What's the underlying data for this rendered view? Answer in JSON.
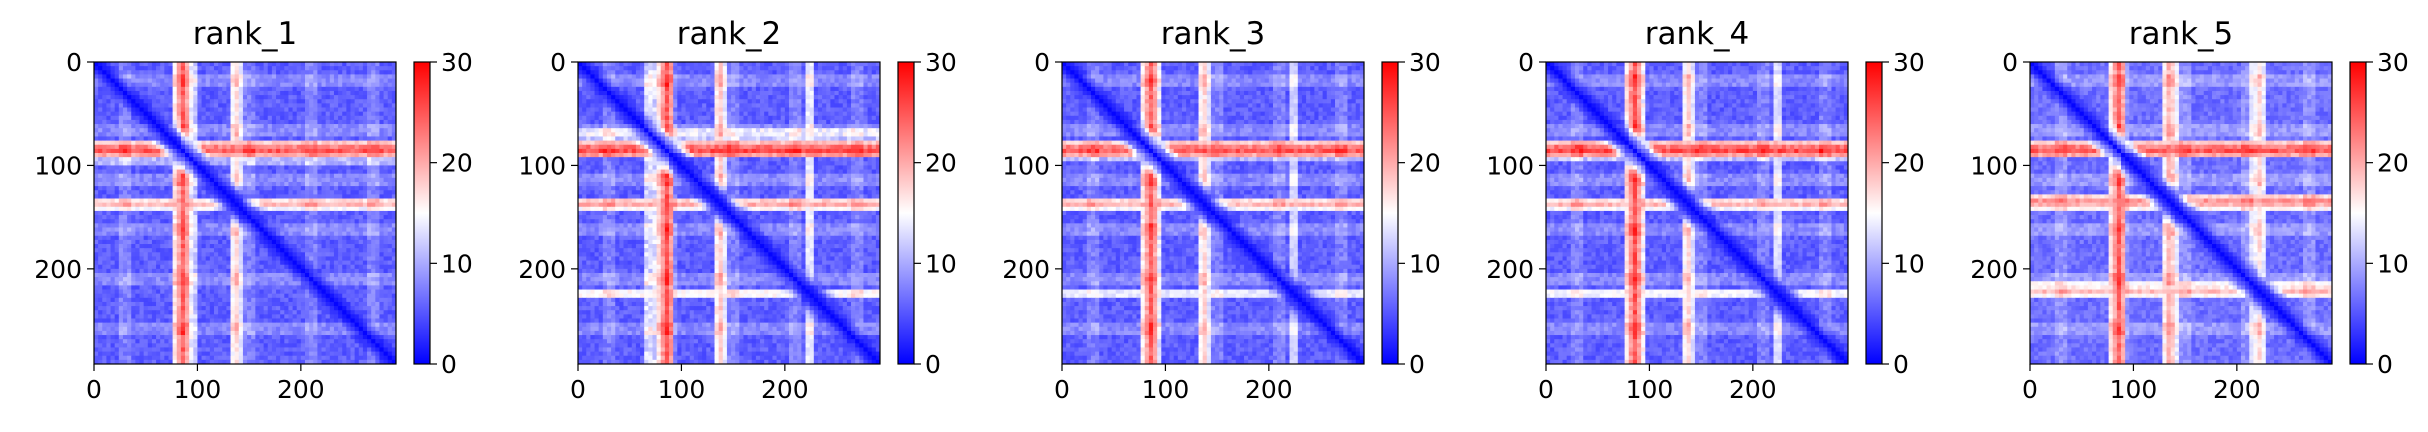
{
  "chart_data": [
    {
      "type": "heatmap",
      "title": "rank_1",
      "x_ticks": [
        "0",
        "100",
        "200"
      ],
      "y_ticks": [
        "0",
        "100",
        "200"
      ],
      "xlim": [
        0,
        292
      ],
      "ylim": [
        292,
        0
      ],
      "matrix_size": 292,
      "colormap": "bwr",
      "colorbar": {
        "min": 0,
        "max": 30,
        "ticks": [
          "0",
          "10",
          "20",
          "30"
        ]
      },
      "features": {
        "diagonal": "low values (~0) along the main diagonal",
        "high_bands": [
          {
            "rows": [
              78,
              92
            ],
            "value": 28
          },
          {
            "rows": [
              132,
              142
            ],
            "value": 22
          }
        ],
        "moderate_bands": [
          {
            "cols": [
              85,
              100
            ],
            "value": 14
          }
        ],
        "background": 4
      }
    },
    {
      "type": "heatmap",
      "title": "rank_2",
      "x_ticks": [
        "0",
        "100",
        "200"
      ],
      "y_ticks": [
        "0",
        "100",
        "200"
      ],
      "xlim": [
        0,
        292
      ],
      "ylim": [
        292,
        0
      ],
      "matrix_size": 292,
      "colormap": "bwr",
      "colorbar": {
        "min": 0,
        "max": 30,
        "ticks": [
          "0",
          "10",
          "20",
          "30"
        ]
      },
      "features": {
        "diagonal": "low values (~0) along the main diagonal",
        "high_bands": [
          {
            "rows": [
              78,
              92
            ],
            "value": 29
          },
          {
            "rows": [
              132,
              142
            ],
            "value": 23
          },
          {
            "rows": [
              220,
              228
            ],
            "value": 19
          }
        ],
        "moderate_bands": [
          {
            "cols": [
              65,
              90
            ],
            "value": 15
          }
        ],
        "background": 4
      }
    },
    {
      "type": "heatmap",
      "title": "rank_3",
      "x_ticks": [
        "0",
        "100",
        "200"
      ],
      "y_ticks": [
        "0",
        "100",
        "200"
      ],
      "xlim": [
        0,
        292
      ],
      "ylim": [
        292,
        0
      ],
      "matrix_size": 292,
      "colormap": "bwr",
      "colorbar": {
        "min": 0,
        "max": 30,
        "ticks": [
          "0",
          "10",
          "20",
          "30"
        ]
      },
      "features": {
        "diagonal": "low values (~0) along the main diagonal",
        "high_bands": [
          {
            "rows": [
              78,
              92
            ],
            "value": 28
          },
          {
            "rows": [
              132,
              142
            ],
            "value": 22
          },
          {
            "rows": [
              220,
              228
            ],
            "value": 17
          }
        ],
        "moderate_bands": [
          {
            "cols": [
              75,
              95
            ],
            "value": 14
          }
        ],
        "background": 4
      }
    },
    {
      "type": "heatmap",
      "title": "rank_4",
      "x_ticks": [
        "0",
        "100",
        "200"
      ],
      "y_ticks": [
        "0",
        "100",
        "200"
      ],
      "xlim": [
        0,
        292
      ],
      "ylim": [
        292,
        0
      ],
      "matrix_size": 292,
      "colormap": "bwr",
      "colorbar": {
        "min": 0,
        "max": 30,
        "ticks": [
          "0",
          "10",
          "20",
          "30"
        ]
      },
      "features": {
        "diagonal": "low values (~0) along the main diagonal",
        "high_bands": [
          {
            "rows": [
              78,
              92
            ],
            "value": 29
          },
          {
            "rows": [
              132,
              142
            ],
            "value": 22
          },
          {
            "rows": [
              220,
              228
            ],
            "value": 18
          }
        ],
        "moderate_bands": [
          {
            "cols": [
              80,
              95
            ],
            "value": 15
          }
        ],
        "background": 4
      }
    },
    {
      "type": "heatmap",
      "title": "rank_5",
      "x_ticks": [
        "0",
        "100",
        "200"
      ],
      "y_ticks": [
        "0",
        "100",
        "200"
      ],
      "xlim": [
        0,
        292
      ],
      "ylim": [
        292,
        0
      ],
      "matrix_size": 292,
      "colormap": "bwr",
      "colorbar": {
        "min": 0,
        "max": 30,
        "ticks": [
          "0",
          "10",
          "20",
          "30"
        ]
      },
      "features": {
        "diagonal": "low values (~0) along the main diagonal",
        "high_bands": [
          {
            "rows": [
              78,
              92
            ],
            "value": 28
          },
          {
            "rows": [
              128,
              142
            ],
            "value": 24
          },
          {
            "rows": [
              215,
              228
            ],
            "value": 21
          }
        ],
        "moderate_bands": [
          {
            "cols": [
              75,
              90
            ],
            "value": 17
          }
        ],
        "background": 5
      }
    }
  ]
}
